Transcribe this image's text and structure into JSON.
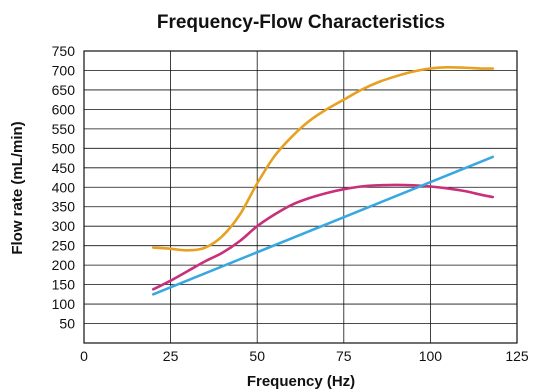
{
  "chart_data": {
    "type": "line",
    "title": "Frequency-Flow Characteristics",
    "xlabel": "Frequency (Hz)",
    "ylabel": "Flow rate (mL/min)",
    "xlim": [
      0,
      125
    ],
    "ylim": [
      0,
      750
    ],
    "x_ticks": [
      "0",
      "25",
      "50",
      "75",
      "100",
      "125"
    ],
    "y_ticks": [
      "50",
      "100",
      "150",
      "200",
      "250",
      "300",
      "350",
      "400",
      "450",
      "500",
      "550",
      "600",
      "650",
      "700",
      "750"
    ],
    "x_tick_values": [
      0,
      25,
      50,
      75,
      100,
      125
    ],
    "y_tick_values": [
      50,
      100,
      150,
      200,
      250,
      300,
      350,
      400,
      450,
      500,
      550,
      600,
      650,
      700,
      750
    ],
    "x_grid_values": [
      25,
      50,
      75,
      100
    ],
    "grid": true,
    "series": [
      {
        "color": "#E8A020",
        "points": [
          [
            20,
            245
          ],
          [
            25,
            242
          ],
          [
            30,
            238
          ],
          [
            35,
            245
          ],
          [
            40,
            275
          ],
          [
            45,
            330
          ],
          [
            50,
            410
          ],
          [
            55,
            480
          ],
          [
            60,
            530
          ],
          [
            65,
            570
          ],
          [
            70,
            600
          ],
          [
            75,
            625
          ],
          [
            80,
            650
          ],
          [
            85,
            670
          ],
          [
            90,
            685
          ],
          [
            95,
            697
          ],
          [
            100,
            705
          ],
          [
            105,
            708
          ],
          [
            110,
            707
          ],
          [
            115,
            705
          ],
          [
            118,
            705
          ]
        ]
      },
      {
        "color": "#C8307A",
        "points": [
          [
            20,
            138
          ],
          [
            25,
            160
          ],
          [
            30,
            185
          ],
          [
            35,
            210
          ],
          [
            40,
            232
          ],
          [
            45,
            262
          ],
          [
            50,
            300
          ],
          [
            55,
            330
          ],
          [
            60,
            355
          ],
          [
            65,
            372
          ],
          [
            70,
            385
          ],
          [
            75,
            395
          ],
          [
            80,
            402
          ],
          [
            85,
            405
          ],
          [
            90,
            406
          ],
          [
            95,
            405
          ],
          [
            100,
            402
          ],
          [
            105,
            397
          ],
          [
            110,
            390
          ],
          [
            115,
            380
          ],
          [
            118,
            375
          ]
        ]
      },
      {
        "color": "#3AA8E0",
        "points": [
          [
            20,
            125
          ],
          [
            118,
            478
          ]
        ]
      }
    ]
  }
}
